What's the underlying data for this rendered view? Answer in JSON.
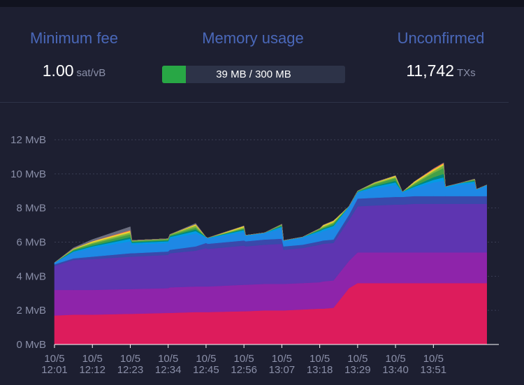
{
  "stats": {
    "min_fee": {
      "label": "Minimum fee",
      "value": "1.00",
      "unit": "sat/vB"
    },
    "memory": {
      "label": "Memory usage",
      "text": "39 MB / 300 MB",
      "used_fraction": 0.13
    },
    "unconfirmed": {
      "label": "Unconfirmed",
      "value": "11,742",
      "unit": "TXs"
    }
  },
  "colors": {
    "background": "#1d1f31",
    "label": "#4a68b9",
    "memory_fill": "#28a745",
    "grid": "#3b3f55"
  },
  "chart_data": {
    "type": "area",
    "stacked": true,
    "ylabel": "",
    "xlabel": "",
    "y_unit": "MvB",
    "ylim": [
      0,
      12
    ],
    "yticks": [
      "0 MvB",
      "2 MvB",
      "4 MvB",
      "6 MvB",
      "8 MvB",
      "10 MvB",
      "12 MvB"
    ],
    "x_tick_labels": [
      [
        "10/5",
        "12:01"
      ],
      [
        "10/5",
        "12:12"
      ],
      [
        "10/5",
        "12:23"
      ],
      [
        "10/5",
        "12:34"
      ],
      [
        "10/5",
        "12:45"
      ],
      [
        "10/5",
        "12:56"
      ],
      [
        "10/5",
        "13:07"
      ],
      [
        "10/5",
        "13:18"
      ],
      [
        "10/5",
        "13:29"
      ],
      [
        "10/5",
        "13:40"
      ],
      [
        "10/5",
        "13:51"
      ]
    ],
    "x_minutes": [
      0,
      5.5,
      11,
      22,
      22.5,
      33,
      33.5,
      41,
      44,
      44.5,
      55,
      55.5,
      61,
      66,
      66.5,
      72,
      77,
      78,
      81,
      85.5,
      88,
      93,
      99,
      101,
      104.5,
      110,
      113,
      113.5,
      117.5,
      122,
      122.5,
      125.5
    ],
    "grid": "horizontal dotted",
    "legend": "none",
    "series": [
      {
        "color": "#dd1c5c",
        "values": [
          1.7,
          1.75,
          1.75,
          1.8,
          1.8,
          1.85,
          1.85,
          1.9,
          1.9,
          1.9,
          1.95,
          1.95,
          2.0,
          2.0,
          2.0,
          2.05,
          2.1,
          2.1,
          2.15,
          3.3,
          3.6,
          3.6,
          3.6,
          3.6,
          3.6,
          3.6,
          3.6,
          3.6,
          3.6,
          3.6,
          3.6,
          3.6
        ]
      },
      {
        "color": "#8e24aa",
        "values": [
          1.5,
          1.45,
          1.45,
          1.45,
          1.45,
          1.45,
          1.5,
          1.5,
          1.5,
          1.5,
          1.55,
          1.55,
          1.55,
          1.55,
          1.55,
          1.55,
          1.55,
          1.6,
          1.6,
          1.6,
          1.8,
          1.8,
          1.8,
          1.8,
          1.8,
          1.8,
          1.8,
          1.8,
          1.8,
          1.8,
          1.8,
          1.8
        ]
      },
      {
        "color": "#5e35b1",
        "values": [
          1.4,
          1.75,
          1.8,
          1.9,
          1.9,
          1.95,
          2.0,
          2.1,
          2.25,
          2.2,
          2.3,
          2.25,
          2.3,
          2.35,
          2.0,
          2.05,
          2.2,
          2.2,
          2.2,
          2.4,
          2.7,
          2.75,
          2.8,
          2.8,
          2.85,
          2.85,
          2.85,
          2.85,
          2.85,
          2.85,
          2.85,
          2.85
        ]
      },
      {
        "color": "#3949ab",
        "values": [
          0.1,
          0.1,
          0.15,
          0.2,
          0.2,
          0.2,
          0.2,
          0.25,
          0.3,
          0.3,
          0.3,
          0.3,
          0.3,
          0.3,
          0.2,
          0.2,
          0.2,
          0.2,
          0.2,
          0.3,
          0.45,
          0.45,
          0.45,
          0.45,
          0.45,
          0.45,
          0.45,
          0.45,
          0.45,
          0.45,
          0.45,
          0.45
        ]
      },
      {
        "color": "#1e88e5",
        "values": [
          0.1,
          0.35,
          0.5,
          0.7,
          0.5,
          0.5,
          0.65,
          0.75,
          0.3,
          0.3,
          0.5,
          0.3,
          0.35,
          0.6,
          0.3,
          0.4,
          0.5,
          0.55,
          0.65,
          0.45,
          0.35,
          0.55,
          0.7,
          0.25,
          0.45,
          0.8,
          0.9,
          0.45,
          0.65,
          0.75,
          0.35,
          0.6
        ]
      },
      {
        "color": "#039be5",
        "values": [
          0.0,
          0.05,
          0.1,
          0.15,
          0.1,
          0.1,
          0.1,
          0.15,
          0.05,
          0.05,
          0.1,
          0.05,
          0.05,
          0.1,
          0.05,
          0.05,
          0.1,
          0.1,
          0.15,
          0.05,
          0.05,
          0.1,
          0.15,
          0.05,
          0.1,
          0.15,
          0.2,
          0.1,
          0.1,
          0.1,
          0.05,
          0.05
        ]
      },
      {
        "color": "#00897b",
        "values": [
          0.0,
          0.05,
          0.05,
          0.1,
          0.05,
          0.05,
          0.05,
          0.1,
          0.0,
          0.0,
          0.05,
          0.0,
          0.0,
          0.05,
          0.0,
          0.0,
          0.05,
          0.05,
          0.05,
          0.0,
          0.0,
          0.05,
          0.1,
          0.0,
          0.05,
          0.15,
          0.2,
          0.0,
          0.0,
          0.05,
          0.0,
          0.0
        ]
      },
      {
        "color": "#43a047",
        "values": [
          0.0,
          0.05,
          0.1,
          0.15,
          0.05,
          0.05,
          0.05,
          0.1,
          0.0,
          0.0,
          0.05,
          0.0,
          0.0,
          0.05,
          0.0,
          0.0,
          0.05,
          0.05,
          0.1,
          0.0,
          0.05,
          0.1,
          0.15,
          0.0,
          0.1,
          0.25,
          0.35,
          0.0,
          0.0,
          0.05,
          0.0,
          0.0
        ]
      },
      {
        "color": "#7cb342",
        "values": [
          0.0,
          0.03,
          0.05,
          0.1,
          0.05,
          0.05,
          0.05,
          0.1,
          0.0,
          0.0,
          0.05,
          0.0,
          0.0,
          0.05,
          0.0,
          0.0,
          0.05,
          0.05,
          0.05,
          0.0,
          0.0,
          0.05,
          0.05,
          0.0,
          0.05,
          0.1,
          0.15,
          0.0,
          0.0,
          0.05,
          0.0,
          0.0
        ]
      },
      {
        "color": "#c0ca33",
        "values": [
          0.0,
          0.02,
          0.05,
          0.05,
          0.0,
          0.0,
          0.0,
          0.05,
          0.0,
          0.0,
          0.05,
          0.0,
          0.0,
          0.0,
          0.0,
          0.0,
          0.0,
          0.05,
          0.05,
          0.0,
          0.0,
          0.05,
          0.05,
          0.0,
          0.05,
          0.05,
          0.05,
          0.0,
          0.0,
          0.0,
          0.0,
          0.0
        ]
      },
      {
        "color": "#fdd835",
        "values": [
          0.0,
          0.02,
          0.05,
          0.05,
          0.0,
          0.0,
          0.0,
          0.05,
          0.0,
          0.0,
          0.05,
          0.0,
          0.0,
          0.0,
          0.0,
          0.0,
          0.0,
          0.05,
          0.05,
          0.0,
          0.0,
          0.0,
          0.05,
          0.0,
          0.05,
          0.05,
          0.05,
          0.0,
          0.0,
          0.0,
          0.0,
          0.0
        ]
      },
      {
        "color": "#ff7043",
        "values": [
          0.0,
          0.0,
          0.0,
          0.05,
          0.0,
          0.0,
          0.0,
          0.0,
          0.0,
          0.0,
          0.0,
          0.0,
          0.0,
          0.0,
          0.0,
          0.0,
          0.0,
          0.0,
          0.0,
          0.0,
          0.0,
          0.0,
          0.0,
          0.0,
          0.0,
          0.05,
          0.05,
          0.0,
          0.0,
          0.0,
          0.0,
          0.0
        ]
      },
      {
        "color": "#6d6f80",
        "values": [
          0.0,
          0.05,
          0.1,
          0.2,
          0.0,
          0.0,
          0.0,
          0.05,
          0.0,
          0.0,
          0.0,
          0.0,
          0.0,
          0.0,
          0.0,
          0.0,
          0.0,
          0.0,
          0.0,
          0.0,
          0.0,
          0.0,
          0.0,
          0.0,
          0.0,
          0.0,
          0.0,
          0.0,
          0.0,
          0.0,
          0.0,
          0.0
        ]
      }
    ]
  }
}
